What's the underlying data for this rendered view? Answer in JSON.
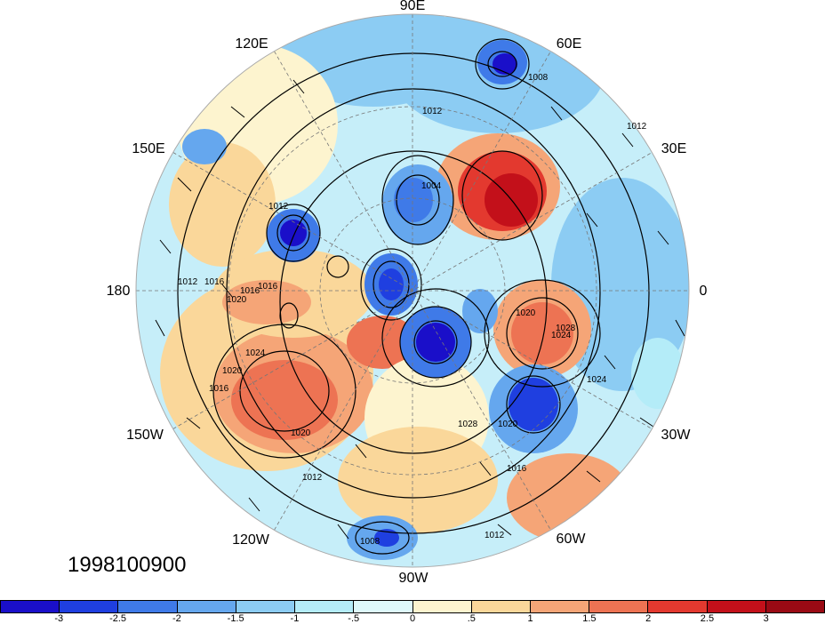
{
  "map": {
    "projection": "north polar stereographic",
    "longitude_labels": [
      "90E",
      "60E",
      "30E",
      "0",
      "30W",
      "60W",
      "90W",
      "120W",
      "150W",
      "180",
      "150E",
      "120E"
    ],
    "contour_labels": [
      "1012",
      "1008",
      "1004",
      "1012",
      "1016",
      "1020",
      "1024",
      "1028",
      "1016",
      "1020",
      "1024",
      "1020",
      "1016",
      "1012",
      "1008",
      "1012",
      "1020",
      "1024",
      "1016",
      "1012",
      "1028",
      "1020",
      "1016",
      "1012"
    ],
    "date": "1998100900"
  },
  "colorbar": {
    "tick_labels": [
      "-3",
      "-2.5",
      "-2",
      "-1.5",
      "-1",
      "-.5",
      "0",
      ".5",
      "1",
      "1.5",
      "2",
      "2.5",
      "3"
    ],
    "colors": [
      "#1a0fc9",
      "#1f3fe0",
      "#3f7ae8",
      "#65a7ee",
      "#8cccf3",
      "#b4ecf8",
      "#def9fb",
      "#fdf4cf",
      "#fad79a",
      "#f5a577",
      "#ed7353",
      "#e3392f",
      "#c3101a",
      "#9a0a14"
    ]
  },
  "regions": {
    "positive_anomaly_color": "#e5483c",
    "negative_anomaly_color": "#3a6fe0"
  }
}
